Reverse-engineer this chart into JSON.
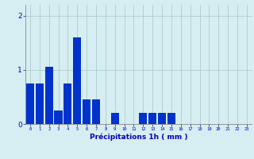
{
  "values": [
    0.75,
    0.75,
    1.05,
    0.25,
    0.75,
    1.6,
    0.45,
    0.45,
    0.0,
    0.2,
    0.0,
    0.0,
    0.2,
    0.2,
    0.2,
    0.2,
    0.0,
    0.0,
    0.0,
    0.0,
    0.0,
    0.0,
    0.0,
    0.0
  ],
  "bar_color": "#0033cc",
  "background_color": "#d6eef2",
  "grid_color": "#aacccc",
  "xlabel": "Précipitations 1h ( mm )",
  "xlabel_color": "#0000bb",
  "tick_color": "#0000bb",
  "yticks": [
    0,
    1,
    2
  ],
  "ylim": [
    0,
    2.2
  ],
  "bar_width": 0.85,
  "figsize": [
    3.2,
    2.0
  ],
  "dpi": 100
}
